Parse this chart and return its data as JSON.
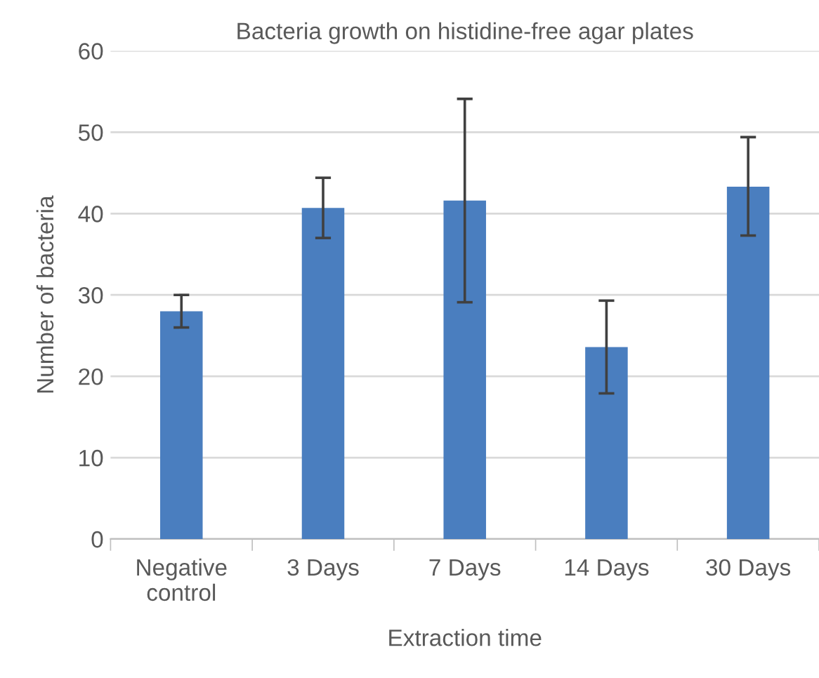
{
  "chart_data": {
    "type": "bar",
    "title": "Bacteria growth on histidine-free agar plates",
    "xlabel": "Extraction time",
    "ylabel": "Number of bacteria",
    "categories": [
      "Negative\ncontrol",
      "3 Days",
      "7 Days",
      "14 Days",
      "30 Days"
    ],
    "values": [
      28,
      40.7,
      41.6,
      23.6,
      43.3
    ],
    "errors": [
      [
        26,
        30
      ],
      [
        37,
        44.4
      ],
      [
        29.1,
        54.1
      ],
      [
        17.9,
        29.3
      ],
      [
        37.3,
        49.4
      ]
    ],
    "color": "#4a7ebf",
    "ylim": [
      0,
      60
    ],
    "yticks": [
      0,
      10,
      20,
      30,
      40,
      50,
      60
    ],
    "grid": "y"
  }
}
